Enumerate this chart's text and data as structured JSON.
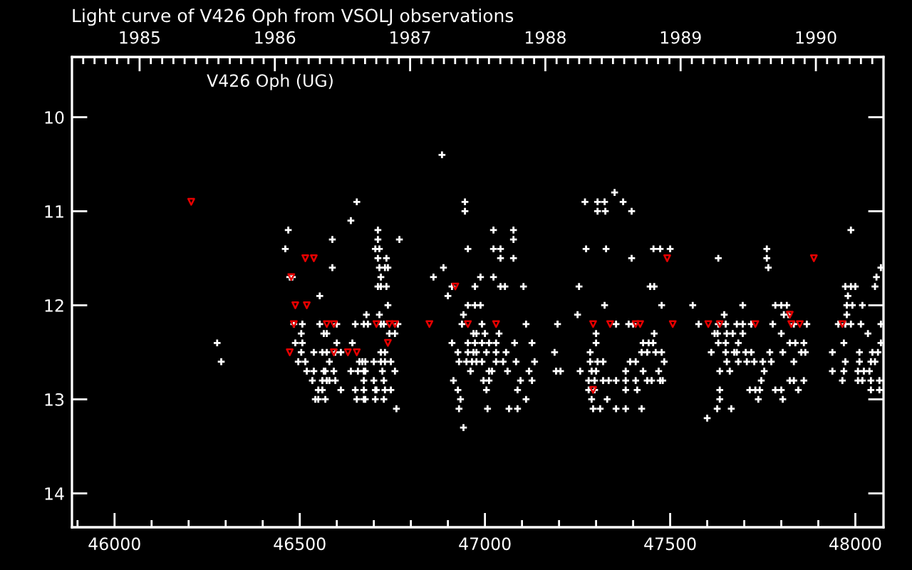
{
  "chart_data": {
    "type": "scatter",
    "title": "Light curve of V426 Oph from VSOLJ observations",
    "annotations": [
      "V426 Oph (UG)"
    ],
    "xlim": [
      45885,
      48076
    ],
    "ylim": [
      14.36,
      9.36
    ],
    "xticks": [
      {
        "value": 45900,
        "label": null
      },
      46000,
      {
        "value": 46100,
        "label": null
      },
      {
        "value": 46200,
        "label": null
      },
      {
        "value": 46300,
        "label": null
      },
      {
        "value": 46400,
        "label": null
      },
      46500,
      {
        "value": 46600,
        "label": null
      },
      {
        "value": 46700,
        "label": null
      },
      {
        "value": 46800,
        "label": null
      },
      {
        "value": 46900,
        "label": null
      },
      47000,
      {
        "value": 47100,
        "label": null
      },
      {
        "value": 47200,
        "label": null
      },
      {
        "value": 47300,
        "label": null
      },
      {
        "value": 47400,
        "label": null
      },
      47500,
      {
        "value": 47600,
        "label": null
      },
      {
        "value": 47700,
        "label": null
      },
      {
        "value": 47800,
        "label": null
      },
      {
        "value": 47900,
        "label": null
      },
      48000
    ],
    "yticks": [
      10,
      11,
      12,
      13,
      14
    ],
    "x2lim": [
      1984.5,
      1990.5
    ],
    "x2ticks": [
      {
        "value": 1984.583,
        "label": null
      },
      {
        "value": 1984.667,
        "label": null
      },
      {
        "value": 1984.75,
        "label": null
      },
      {
        "value": 1984.833,
        "label": null
      },
      {
        "value": 1984.917,
        "label": null
      },
      1985,
      {
        "value": 1985.083,
        "label": null
      },
      {
        "value": 1985.167,
        "label": null
      },
      {
        "value": 1985.25,
        "label": null
      },
      {
        "value": 1985.333,
        "label": null
      },
      {
        "value": 1985.417,
        "label": null
      },
      {
        "value": 1985.5,
        "label": null
      },
      {
        "value": 1985.583,
        "label": null
      },
      {
        "value": 1985.667,
        "label": null
      },
      {
        "value": 1985.75,
        "label": null
      },
      {
        "value": 1985.833,
        "label": null
      },
      {
        "value": 1985.917,
        "label": null
      },
      1986,
      {
        "value": 1986.083,
        "label": null
      },
      {
        "value": 1986.167,
        "label": null
      },
      {
        "value": 1986.25,
        "label": null
      },
      {
        "value": 1986.333,
        "label": null
      },
      {
        "value": 1986.417,
        "label": null
      },
      {
        "value": 1986.5,
        "label": null
      },
      {
        "value": 1986.583,
        "label": null
      },
      {
        "value": 1986.667,
        "label": null
      },
      {
        "value": 1986.75,
        "label": null
      },
      {
        "value": 1986.833,
        "label": null
      },
      {
        "value": 1986.917,
        "label": null
      },
      1987,
      {
        "value": 1987.083,
        "label": null
      },
      {
        "value": 1987.167,
        "label": null
      },
      {
        "value": 1987.25,
        "label": null
      },
      {
        "value": 1987.333,
        "label": null
      },
      {
        "value": 1987.417,
        "label": null
      },
      {
        "value": 1987.5,
        "label": null
      },
      {
        "value": 1987.583,
        "label": null
      },
      {
        "value": 1987.667,
        "label": null
      },
      {
        "value": 1987.75,
        "label": null
      },
      {
        "value": 1987.833,
        "label": null
      },
      {
        "value": 1987.917,
        "label": null
      },
      1988,
      {
        "value": 1988.083,
        "label": null
      },
      {
        "value": 1988.167,
        "label": null
      },
      {
        "value": 1988.25,
        "label": null
      },
      {
        "value": 1988.333,
        "label": null
      },
      {
        "value": 1988.417,
        "label": null
      },
      {
        "value": 1988.5,
        "label": null
      },
      {
        "value": 1988.583,
        "label": null
      },
      {
        "value": 1988.667,
        "label": null
      },
      {
        "value": 1988.75,
        "label": null
      },
      {
        "value": 1988.833,
        "label": null
      },
      {
        "value": 1988.917,
        "label": null
      },
      1989,
      {
        "value": 1989.083,
        "label": null
      },
      {
        "value": 1989.167,
        "label": null
      },
      {
        "value": 1989.25,
        "label": null
      },
      {
        "value": 1989.333,
        "label": null
      },
      {
        "value": 1989.417,
        "label": null
      },
      {
        "value": 1989.5,
        "label": null
      },
      {
        "value": 1989.583,
        "label": null
      },
      {
        "value": 1989.667,
        "label": null
      },
      {
        "value": 1989.75,
        "label": null
      },
      {
        "value": 1989.833,
        "label": null
      },
      {
        "value": 1989.917,
        "label": null
      },
      1990,
      {
        "value": 1990.083,
        "label": null
      },
      {
        "value": 1990.167,
        "label": null
      },
      {
        "value": 1990.25,
        "label": null
      },
      {
        "value": 1990.333,
        "label": null
      },
      {
        "value": 1990.417,
        "label": null
      }
    ],
    "series": [
      {
        "marker": "cross",
        "color": "#ffffff",
        "x": [
          46884,
          46654,
          46638,
          46469,
          46711,
          46588,
          46711,
          46769,
          46461,
          46704,
          46715,
          46711,
          46734,
          46588,
          46715,
          46730,
          46738,
          46888,
          46473,
          46480,
          46719,
          46861,
          46711,
          46719,
          46734,
          46911,
          46554,
          46900,
          46738,
          46680,
          46715,
          46484,
          46507,
          46554,
          46600,
          46650,
          46673,
          46684,
          46719,
          46727,
          46765,
          46504,
          46565,
          46573,
          46742,
          46757,
          46277,
          46488,
          46507,
          46600,
          46642,
          46911,
          46504,
          46538,
          46561,
          46573,
          46596,
          46611,
          46719,
          46730,
          46288,
          46496,
          46515,
          46580,
          46661,
          46669,
          46677,
          46700,
          46719,
          46730,
          46746,
          46519,
          46538,
          46565,
          46569,
          46592,
          46638,
          46657,
          46673,
          46677,
          46723,
          46757,
          46534,
          46561,
          46573,
          46580,
          46596,
          46673,
          46700,
          46727,
          46915,
          46550,
          46561,
          46611,
          46650,
          46673,
          46704,
          46707,
          46730,
          46746,
          46542,
          46550,
          46569,
          46654,
          46673,
          46677,
          46704,
          46727,
          46761,
          47350,
          46946,
          47270,
          47304,
          47323,
          47373,
          46946,
          47304,
          47325,
          47396,
          47023,
          47077,
          47988,
          47077,
          46954,
          47023,
          47042,
          47273,
          47327,
          47455,
          47473,
          47500,
          47761,
          47042,
          47077,
          47396,
          47630,
          47761,
          47765,
          48069,
          46988,
          47023,
          48057,
          46973,
          47042,
          47054,
          47104,
          47254,
          47446,
          47457,
          47973,
          47988,
          48000,
          48053,
          47980,
          46954,
          46973,
          46988,
          47323,
          47477,
          47561,
          47696,
          47784,
          47800,
          47815,
          47977,
          47992,
          48019,
          46942,
          47250,
          47646,
          47807,
          47819,
          47977,
          46938,
          46992,
          47111,
          47196,
          47354,
          47388,
          47400,
          47577,
          47630,
          47650,
          47680,
          47696,
          47719,
          47777,
          47834,
          47869,
          47954,
          47973,
          47988,
          48015,
          48069,
          46969,
          46977,
          47000,
          47038,
          47300,
          47457,
          47620,
          47628,
          47653,
          47669,
          47696,
          47800,
          48034,
          46954,
          46973,
          46992,
          47011,
          47030,
          47080,
          47127,
          47300,
          47427,
          47442,
          47454,
          47630,
          47650,
          47684,
          47823,
          47838,
          47861,
          47969,
          48069,
          46927,
          46954,
          46969,
          46977,
          47004,
          47030,
          47057,
          47188,
          47284,
          47423,
          47438,
          47461,
          47477,
          47611,
          47650,
          47673,
          47680,
          47704,
          47719,
          47769,
          47804,
          47854,
          47865,
          47938,
          48011,
          48046,
          48061,
          46930,
          46950,
          46965,
          46977,
          46992,
          47030,
          47049,
          47084,
          47134,
          47284,
          47304,
          47319,
          47392,
          47407,
          47484,
          47653,
          47684,
          47707,
          47727,
          47750,
          47773,
          47834,
          47973,
          48011,
          48042,
          48053,
          46961,
          47011,
          47019,
          47061,
          47119,
          47192,
          47204,
          47257,
          47288,
          47300,
          47380,
          47427,
          47469,
          47634,
          47661,
          47754,
          47938,
          47969,
          48007,
          48023,
          48038,
          46996,
          47011,
          47096,
          47127,
          47280,
          47296,
          47319,
          47334,
          47354,
          47380,
          47407,
          47438,
          47450,
          47473,
          47480,
          47746,
          47823,
          47834,
          47861,
          47965,
          48007,
          48019,
          48042,
          48065,
          46927,
          47004,
          47088,
          47280,
          47296,
          47380,
          47411,
          47634,
          47715,
          47730,
          47742,
          47784,
          47800,
          47846,
          48042,
          48065,
          46934,
          47111,
          47288,
          47330,
          47634,
          47738,
          47804,
          46930,
          47007,
          47065,
          47088,
          47292,
          47311,
          47354,
          47380,
          47423,
          47627,
          47665,
          47600,
          46942
        ],
        "values": [
          10.4,
          10.9,
          11.1,
          11.2,
          11.2,
          11.3,
          11.3,
          11.3,
          11.4,
          11.4,
          11.4,
          11.5,
          11.5,
          11.6,
          11.6,
          11.6,
          11.6,
          11.6,
          11.7,
          11.7,
          11.7,
          11.7,
          11.8,
          11.8,
          11.8,
          11.8,
          11.9,
          11.9,
          12.0,
          12.1,
          12.1,
          12.2,
          12.2,
          12.2,
          12.2,
          12.2,
          12.2,
          12.2,
          12.2,
          12.2,
          12.2,
          12.3,
          12.3,
          12.3,
          12.3,
          12.3,
          12.4,
          12.4,
          12.4,
          12.4,
          12.4,
          12.4,
          12.5,
          12.5,
          12.5,
          12.5,
          12.5,
          12.5,
          12.5,
          12.5,
          12.6,
          12.6,
          12.6,
          12.6,
          12.6,
          12.6,
          12.6,
          12.6,
          12.6,
          12.6,
          12.6,
          12.7,
          12.7,
          12.7,
          12.7,
          12.7,
          12.7,
          12.7,
          12.7,
          12.7,
          12.7,
          12.7,
          12.8,
          12.8,
          12.8,
          12.8,
          12.8,
          12.8,
          12.8,
          12.8,
          12.8,
          12.9,
          12.9,
          12.9,
          12.9,
          12.9,
          12.9,
          12.9,
          12.9,
          12.9,
          13.0,
          13.0,
          13.0,
          13.0,
          13.0,
          13.0,
          13.0,
          13.0,
          13.1,
          10.8,
          10.9,
          10.9,
          10.9,
          10.9,
          10.9,
          11.0,
          11.0,
          11.0,
          11.0,
          11.2,
          11.2,
          11.2,
          11.3,
          11.4,
          11.4,
          11.4,
          11.4,
          11.4,
          11.4,
          11.4,
          11.4,
          11.4,
          11.5,
          11.5,
          11.5,
          11.5,
          11.5,
          11.6,
          11.6,
          11.7,
          11.7,
          11.7,
          11.8,
          11.8,
          11.8,
          11.8,
          11.8,
          11.8,
          11.8,
          11.8,
          11.8,
          11.8,
          11.8,
          11.9,
          12.0,
          12.0,
          12.0,
          12.0,
          12.0,
          12.0,
          12.0,
          12.0,
          12.0,
          12.0,
          12.0,
          12.0,
          12.0,
          12.1,
          12.1,
          12.1,
          12.1,
          12.1,
          12.1,
          12.2,
          12.2,
          12.2,
          12.2,
          12.2,
          12.2,
          12.2,
          12.2,
          12.2,
          12.2,
          12.2,
          12.2,
          12.2,
          12.2,
          12.2,
          12.2,
          12.2,
          12.2,
          12.2,
          12.2,
          12.2,
          12.3,
          12.3,
          12.3,
          12.3,
          12.3,
          12.3,
          12.3,
          12.3,
          12.3,
          12.3,
          12.3,
          12.3,
          12.3,
          12.4,
          12.4,
          12.4,
          12.4,
          12.4,
          12.4,
          12.4,
          12.4,
          12.4,
          12.4,
          12.4,
          12.4,
          12.4,
          12.4,
          12.4,
          12.4,
          12.4,
          12.4,
          12.4,
          12.5,
          12.5,
          12.5,
          12.5,
          12.5,
          12.5,
          12.5,
          12.5,
          12.5,
          12.5,
          12.5,
          12.5,
          12.5,
          12.5,
          12.5,
          12.5,
          12.5,
          12.5,
          12.5,
          12.5,
          12.5,
          12.5,
          12.5,
          12.5,
          12.5,
          12.5,
          12.5,
          12.6,
          12.6,
          12.6,
          12.6,
          12.6,
          12.6,
          12.6,
          12.6,
          12.6,
          12.6,
          12.6,
          12.6,
          12.6,
          12.6,
          12.6,
          12.6,
          12.6,
          12.6,
          12.6,
          12.6,
          12.6,
          12.6,
          12.6,
          12.6,
          12.6,
          12.6,
          12.7,
          12.7,
          12.7,
          12.7,
          12.7,
          12.7,
          12.7,
          12.7,
          12.7,
          12.7,
          12.7,
          12.7,
          12.7,
          12.7,
          12.7,
          12.7,
          12.7,
          12.7,
          12.7,
          12.7,
          12.7,
          12.8,
          12.8,
          12.8,
          12.8,
          12.8,
          12.8,
          12.8,
          12.8,
          12.8,
          12.8,
          12.8,
          12.8,
          12.8,
          12.8,
          12.8,
          12.8,
          12.8,
          12.8,
          12.8,
          12.8,
          12.8,
          12.8,
          12.8,
          12.8,
          12.9,
          12.9,
          12.9,
          12.9,
          12.9,
          12.9,
          12.9,
          12.9,
          12.9,
          12.9,
          12.9,
          12.9,
          12.9,
          12.9,
          12.9,
          12.9,
          13.0,
          13.0,
          13.0,
          13.0,
          13.0,
          13.0,
          13.0,
          13.1,
          13.1,
          13.1,
          13.1,
          13.1,
          13.1,
          13.1,
          13.1,
          13.1,
          13.1,
          13.1,
          13.2,
          13.3
        ]
      },
      {
        "marker": "triangle",
        "color": "#e60000",
        "x": [
          46207,
          46515,
          46538,
          46477,
          46488,
          46519,
          46484,
          46573,
          46592,
          46707,
          46742,
          46757,
          46850,
          46738,
          46473,
          46592,
          46630,
          46654,
          46920,
          46954,
          47030,
          47292,
          47338,
          47407,
          47419,
          47507,
          47603,
          47634,
          47730,
          47827,
          47850,
          47965,
          47492,
          47888,
          47823,
          47292
        ],
        "values": [
          10.9,
          11.5,
          11.5,
          11.7,
          12.0,
          12.0,
          12.2,
          12.2,
          12.2,
          12.2,
          12.2,
          12.2,
          12.2,
          12.4,
          12.5,
          12.5,
          12.5,
          12.5,
          11.8,
          12.2,
          12.2,
          12.2,
          12.2,
          12.2,
          12.2,
          12.2,
          12.2,
          12.2,
          12.2,
          12.2,
          12.2,
          12.2,
          11.5,
          11.5,
          12.1,
          12.9
        ]
      }
    ]
  }
}
